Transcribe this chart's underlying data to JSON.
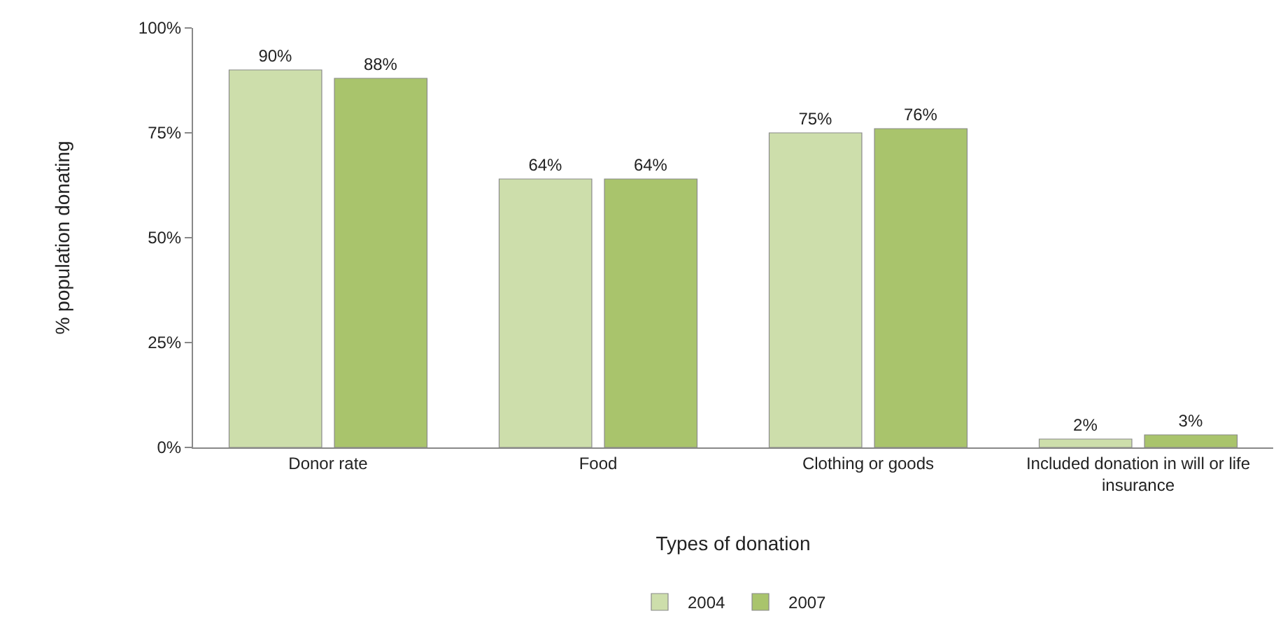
{
  "chart_data": {
    "type": "bar",
    "xlabel": "Types of donation",
    "ylabel": "% population donating",
    "categories": [
      "Donor rate",
      "Food",
      "Clothing or goods",
      "Included donation in will or life insurance"
    ],
    "series": [
      {
        "name": "2004",
        "color": "#cddeab",
        "values": [
          90,
          64,
          75,
          2
        ],
        "value_labels": [
          "90%",
          "64%",
          "75%",
          "2%"
        ]
      },
      {
        "name": "2007",
        "color": "#a9c46c",
        "values": [
          88,
          64,
          76,
          3
        ],
        "value_labels": [
          "88%",
          "64%",
          "76%",
          "3%"
        ]
      }
    ],
    "ylim": [
      0,
      100
    ],
    "yticks": [
      {
        "value": 0,
        "label": "0%"
      },
      {
        "value": 25,
        "label": "25%"
      },
      {
        "value": 50,
        "label": "50%"
      },
      {
        "value": 75,
        "label": "75%"
      },
      {
        "value": 100,
        "label": "100%"
      }
    ],
    "grid": false,
    "legend": "bottom"
  }
}
